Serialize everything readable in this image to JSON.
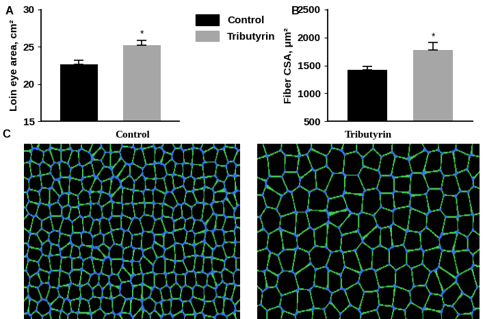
{
  "chart_data": [
    {
      "panel": "A",
      "type": "bar",
      "categories": [
        null,
        null
      ],
      "series": [
        {
          "name": "Control",
          "color": "#000000",
          "values": [
            22.6,
            null
          ],
          "errors": [
            0.6,
            null
          ]
        },
        {
          "name": "Tributyrin",
          "color": "#a6a6a6",
          "values": [
            null,
            25.2
          ],
          "errors": [
            null,
            0.7
          ]
        }
      ],
      "y_label": "Loin eye area, cm²",
      "ylim": [
        15,
        30
      ],
      "yticks": [
        15,
        20,
        25,
        30
      ],
      "legend": "upper left",
      "tick_labels": "y",
      "annotations": [
        {
          "text": "*",
          "index": 1
        }
      ]
    },
    {
      "panel": "B",
      "type": "bar",
      "categories": [
        null,
        null
      ],
      "series": [
        {
          "name": "Control",
          "color": "#000000",
          "values": [
            1420,
            null
          ],
          "errors": [
            60,
            null
          ]
        },
        {
          "name": "Tributyrin",
          "color": "#a6a6a6",
          "values": [
            null,
            1780
          ],
          "errors": [
            null,
            130
          ]
        }
      ],
      "y_label": "Fiber CSA, μm²",
      "ylim": [
        500,
        2500
      ],
      "yticks": [
        500,
        1000,
        1500,
        2000,
        2500
      ],
      "tick_labels": "y",
      "annotations": [
        {
          "text": "*",
          "index": 1
        }
      ]
    }
  ],
  "images": {
    "panel": "C",
    "titles": [
      "Control",
      "Tributyrin"
    ]
  }
}
